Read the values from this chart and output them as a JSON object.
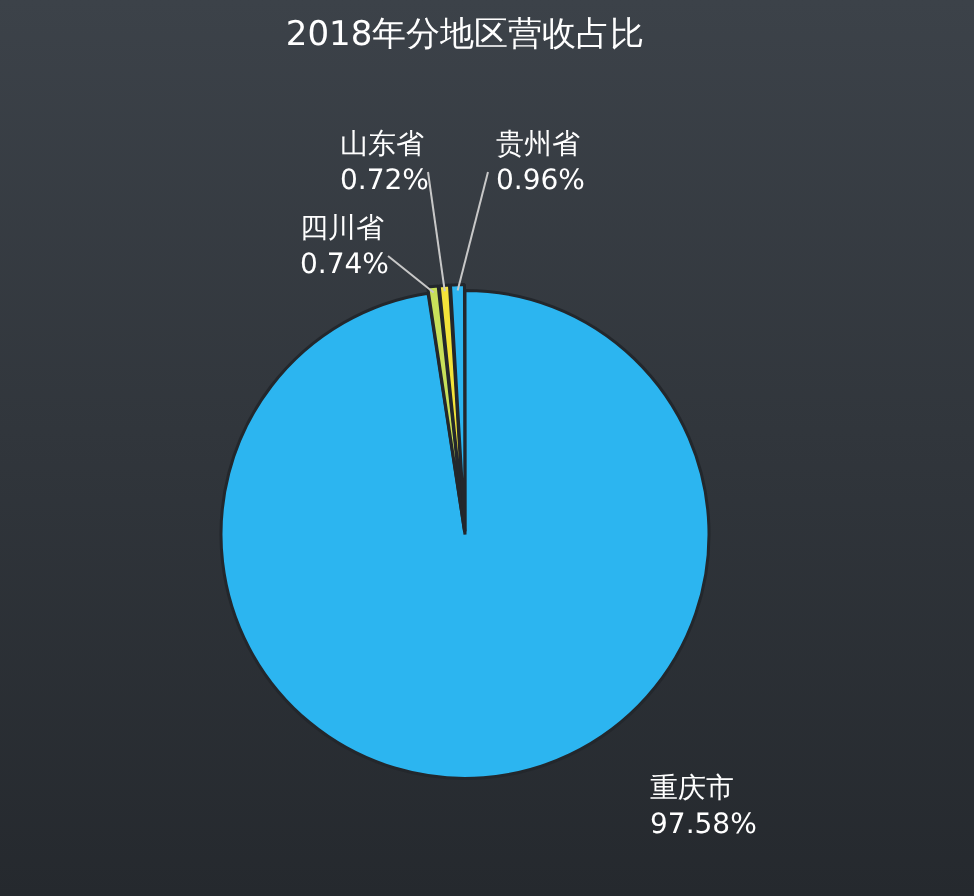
{
  "chart_data": {
    "type": "pie",
    "title": "2018年分地区营收占比",
    "categories": [
      "重庆市",
      "四川省",
      "山东省",
      "贵州省"
    ],
    "values": [
      97.58,
      0.74,
      0.72,
      0.96
    ],
    "value_labels": [
      "97.58%",
      "0.74%",
      "0.72%",
      "0.96%"
    ],
    "colors": [
      "#2cb5f0",
      "#c8e05a",
      "#f3e33a",
      "#2cb5f0"
    ],
    "legend": false
  }
}
